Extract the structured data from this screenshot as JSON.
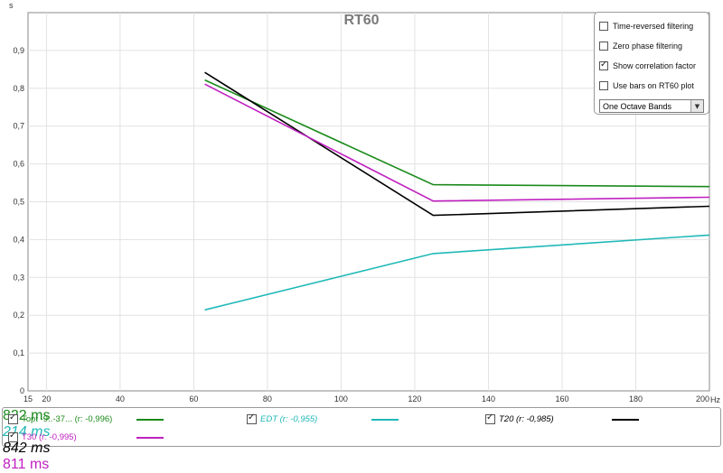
{
  "chart_data": {
    "type": "line",
    "title": "RT60",
    "y_unit": "s",
    "x_unit": "Hz",
    "xlim": [
      15,
      200
    ],
    "ylim": [
      0,
      1.0
    ],
    "x_ticks": [
      15,
      20,
      40,
      60,
      80,
      100,
      120,
      140,
      160,
      180,
      200
    ],
    "x_tick_labels": [
      "15",
      "20",
      "40",
      "60",
      "80",
      "100",
      "120",
      "140",
      "160",
      "180",
      "200"
    ],
    "y_ticks": [
      0,
      0.1,
      0.2,
      0.3,
      0.4,
      0.5,
      0.6,
      0.7,
      0.8,
      0.9
    ],
    "y_tick_labels": [
      "0",
      "0,1",
      "0,2",
      "0,3",
      "0,4",
      "0,5",
      "0,6",
      "0,7",
      "0,8",
      "0,9"
    ],
    "grid": true,
    "series": [
      {
        "name": "Topt -9..-37... (r: -0,996)",
        "color": "#1a8a1a",
        "x": [
          63,
          125,
          200
        ],
        "y": [
          0.822,
          0.545,
          0.54
        ]
      },
      {
        "name": "EDT (r: -0,955)",
        "color": "#20b8b8",
        "x": [
          63,
          125,
          200
        ],
        "y": [
          0.214,
          0.363,
          0.412
        ]
      },
      {
        "name": "T20 (r: -0,985)",
        "color": "#000000",
        "x": [
          63,
          125,
          200
        ],
        "y": [
          0.842,
          0.464,
          0.488
        ]
      },
      {
        "name": "T30 (r: -0,995)",
        "color": "#c020c0",
        "x": [
          63,
          125,
          200
        ],
        "y": [
          0.811,
          0.502,
          0.512
        ]
      }
    ]
  },
  "options": [
    {
      "label": "Time-reversed filtering",
      "checked": false
    },
    {
      "label": "Zero phase filtering",
      "checked": false
    },
    {
      "label": "Show correlation factor",
      "checked": true
    },
    {
      "label": "Use bars on RT60 plot",
      "checked": false
    }
  ],
  "band_select": {
    "value": "One Octave Bands"
  },
  "legend": [
    {
      "label": "Topt -9..-37... (r: -0,996)",
      "value": "822 ms",
      "color": "#1a8a1a",
      "checked": true
    },
    {
      "label": "EDT (r: -0,955)",
      "value": "214 ms",
      "color": "#20b8b8",
      "checked": true
    },
    {
      "label": "T20 (r: -0,985)",
      "value": "842 ms",
      "color": "#000000",
      "checked": true
    },
    {
      "label": "T30 (r: -0,995)",
      "value": "811 ms",
      "color": "#c020c0",
      "checked": true
    }
  ]
}
